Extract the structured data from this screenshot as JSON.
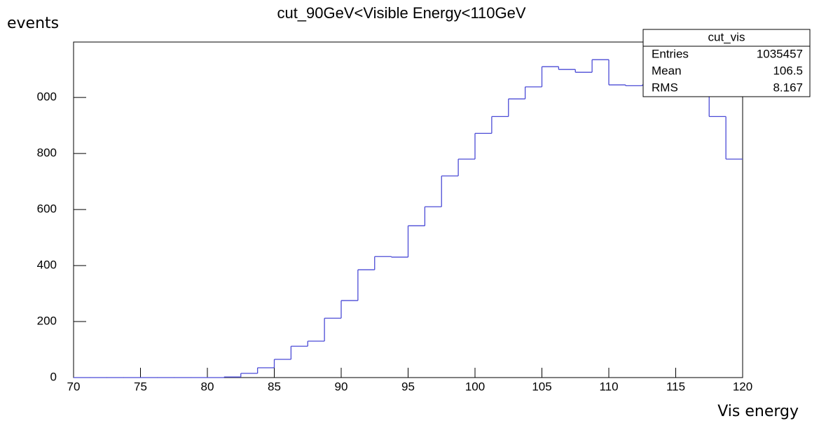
{
  "chart_data": {
    "type": "histogram",
    "title": "cut_90GeV<Visible Energy<110GeV",
    "y_label": "events",
    "x_label": "Vis energy",
    "bins": [
      70,
      71.25,
      72.5,
      73.75,
      75,
      76.25,
      77.5,
      78.75,
      80,
      81.25,
      82.5,
      83.75,
      85,
      86.25,
      87.5,
      88.75,
      90,
      91.25,
      92.5,
      93.75,
      95,
      96.25,
      97.5,
      98.75,
      100,
      101.25,
      102.5,
      103.75,
      105,
      106.25,
      107.5,
      108.75,
      110,
      111.25,
      112.5,
      113.75,
      115,
      116.25,
      117.5,
      118.75,
      120
    ],
    "values": [
      0,
      0,
      0,
      0,
      0,
      0,
      0,
      0,
      0,
      2,
      15,
      35,
      65,
      112,
      130,
      212,
      275,
      385,
      432,
      430,
      542,
      610,
      720,
      780,
      872,
      932,
      995,
      1038,
      1110,
      1100,
      1090,
      1135,
      1045,
      1042,
      1045,
      1050,
      1060,
      1030,
      932,
      780
    ],
    "color": "#4b4bd6",
    "xlim": [
      70,
      120
    ],
    "xticks": [
      70,
      75,
      80,
      85,
      90,
      95,
      100,
      105,
      110,
      115,
      120
    ],
    "ylim": [
      0,
      1198
    ],
    "yticks": [
      0,
      200,
      400,
      600,
      800,
      {
        "value": 1000,
        "label": "000"
      }
    ],
    "stats": {
      "title": "cut_vis",
      "rows": [
        [
          "Entries",
          1035457
        ],
        [
          "Mean",
          106.5
        ],
        [
          "RMS",
          8.167
        ]
      ]
    }
  }
}
